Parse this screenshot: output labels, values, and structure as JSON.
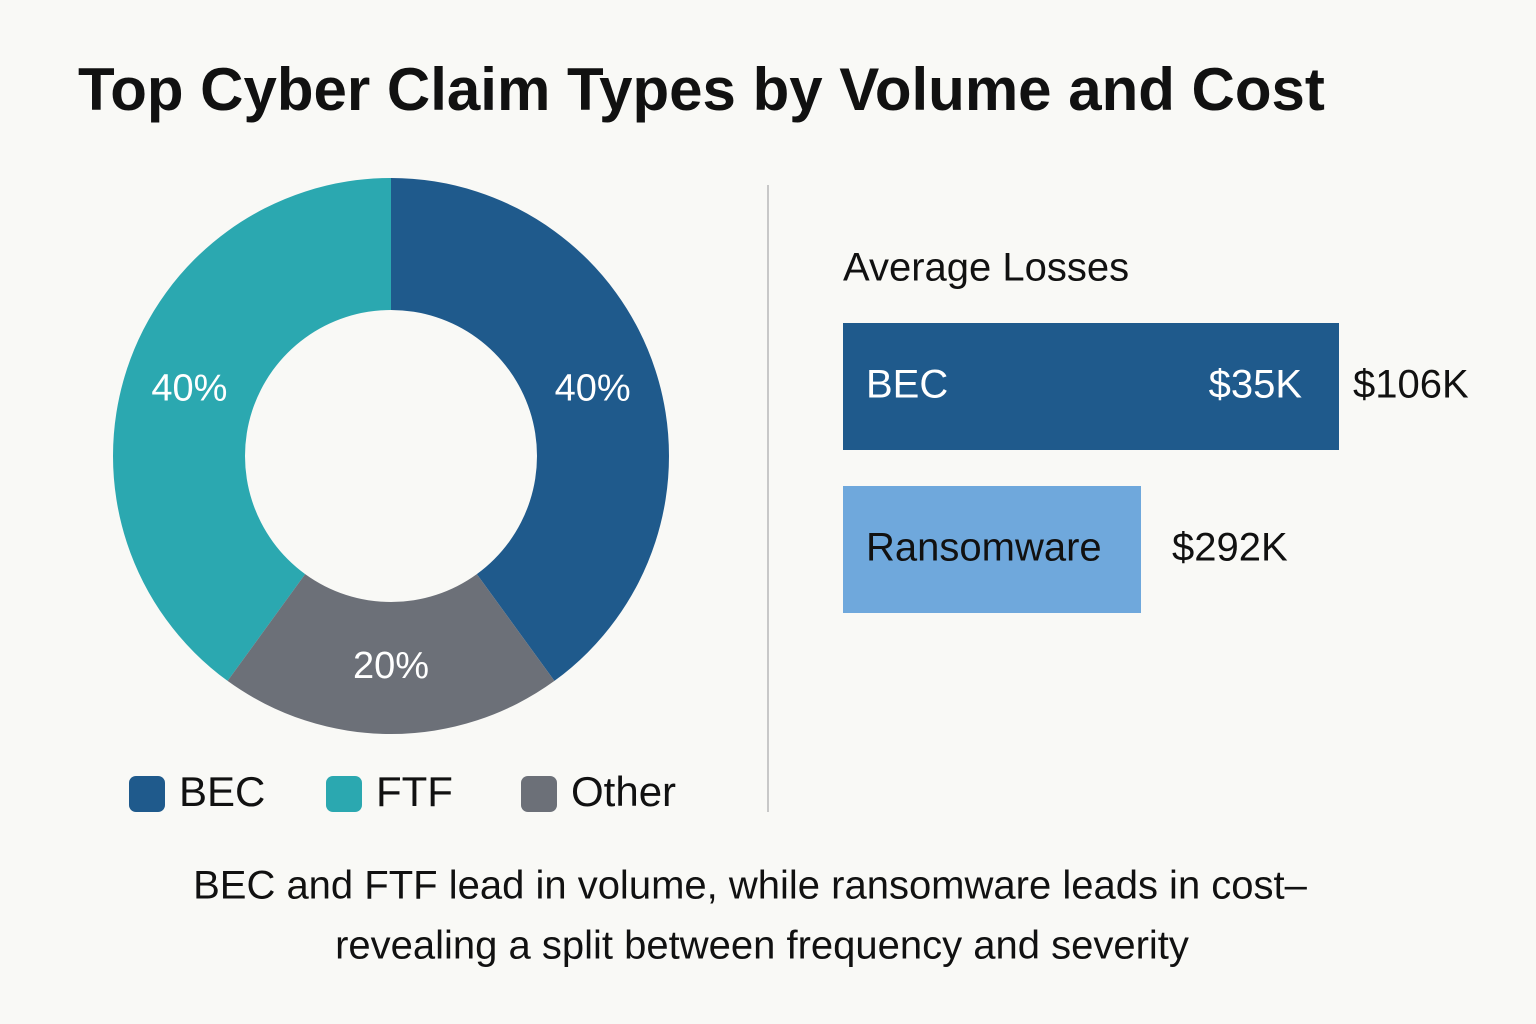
{
  "title": "Top Cyber Claim Types by Volume and Cost",
  "chart_data": {
    "type": "pie",
    "donut": true,
    "categories": [
      "BEC",
      "FTF",
      "Other"
    ],
    "values": [
      40,
      40,
      20
    ],
    "value_labels": [
      "40%",
      "40%",
      "20%"
    ],
    "colors": [
      "#1f5a8c",
      "#2ba8b0",
      "#6c7078"
    ]
  },
  "average_losses": {
    "title": "Average Losses",
    "rows": [
      {
        "label": "BEC",
        "inner_value": "$35K",
        "outer_value": "$106K",
        "color": "#1f5a8c"
      },
      {
        "label": "Ransomware",
        "outer_value": "$292K",
        "color": "#6fa8dc"
      }
    ]
  },
  "caption": [
    "BEC and FTF lead in volume, while ransomware leads in cost–",
    "revealing a split between frequency and severity"
  ]
}
